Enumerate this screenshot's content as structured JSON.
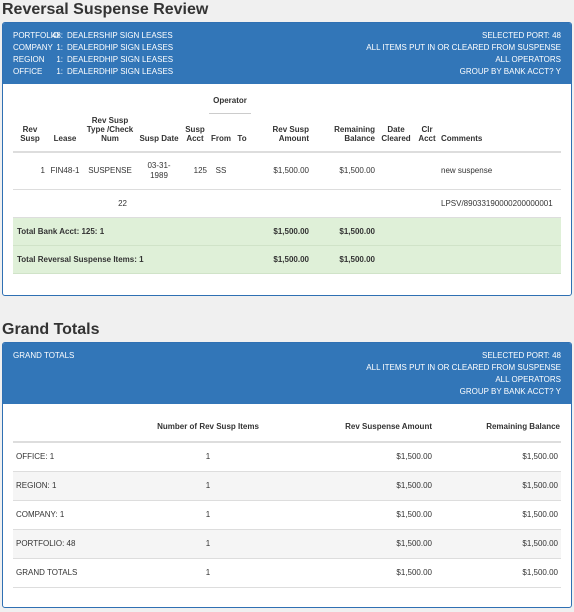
{
  "review": {
    "title": "Reversal Suspense Review",
    "header_left": [
      {
        "key": "PORTFOLIO",
        "num": "48:",
        "value": "DEALERSHIP SIGN LEASES"
      },
      {
        "key": "COMPANY",
        "num": "1:",
        "value": "DEALERDHIP SIGN LEASES"
      },
      {
        "key": "REGION",
        "num": "1:",
        "value": "DEALERDHIP SIGN LEASES"
      },
      {
        "key": "OFFICE",
        "num": "1:",
        "value": "DEALERDHIP SIGN LEASES"
      }
    ],
    "header_right": [
      "SELECTED PORT: 48",
      "ALL ITEMS PUT IN OR CLEARED FROM SUSPENSE",
      "ALL OPERATORS",
      "GROUP BY BANK ACCT? Y"
    ],
    "columns": {
      "rev_susp": "Rev Susp",
      "lease": "Lease",
      "type_check": "Rev Susp Type /Check Num",
      "susp_date": "Susp Date",
      "susp_acct": "Susp Acct",
      "operator": "Operator",
      "from": "From",
      "to": "To",
      "amount": "Rev Susp Amount",
      "remaining": "Remaining Balance",
      "date_cleared": "Date Cleared",
      "clr_acct": "Clr Acct",
      "comments": "Comments"
    },
    "row": {
      "rev_susp": "1",
      "lease": "FIN48-1",
      "type": "SUSPENSE",
      "susp_date": "03-31-1989",
      "susp_acct": "125",
      "from": "SS",
      "to": "",
      "amount": "$1,500.00",
      "remaining": "$1,500.00",
      "date_cleared": "",
      "clr_acct": "",
      "comments": "new suspense"
    },
    "row2": {
      "check_num": "22",
      "comments": "LPSV/89033190000200000001"
    },
    "total_bank": {
      "label": "Total Bank Acct: 125: 1",
      "amount": "$1,500.00",
      "remaining": "$1,500.00"
    },
    "total_items": {
      "label": "Total Reversal Suspense Items: 1",
      "amount": "$1,500.00",
      "remaining": "$1,500.00"
    }
  },
  "grand": {
    "title": "Grand Totals",
    "header_left": "GRAND TOTALS",
    "header_right": [
      "SELECTED PORT: 48",
      "ALL ITEMS PUT IN OR CLEARED FROM SUSPENSE",
      "ALL OPERATORS",
      "GROUP BY BANK ACCT? Y"
    ],
    "columns": {
      "label": "",
      "count": "Number of Rev Susp Items",
      "amount": "Rev Suspense Amount",
      "remaining": "Remaining Balance"
    },
    "rows": [
      {
        "label": "OFFICE: 1",
        "count": "1",
        "amount": "$1,500.00",
        "remaining": "$1,500.00"
      },
      {
        "label": "REGION: 1",
        "count": "1",
        "amount": "$1,500.00",
        "remaining": "$1,500.00"
      },
      {
        "label": "COMPANY: 1",
        "count": "1",
        "amount": "$1,500.00",
        "remaining": "$1,500.00"
      },
      {
        "label": "PORTFOLIO: 48",
        "count": "1",
        "amount": "$1,500.00",
        "remaining": "$1,500.00"
      },
      {
        "label": "GRAND TOTALS",
        "count": "1",
        "amount": "$1,500.00",
        "remaining": "$1,500.00"
      }
    ]
  }
}
